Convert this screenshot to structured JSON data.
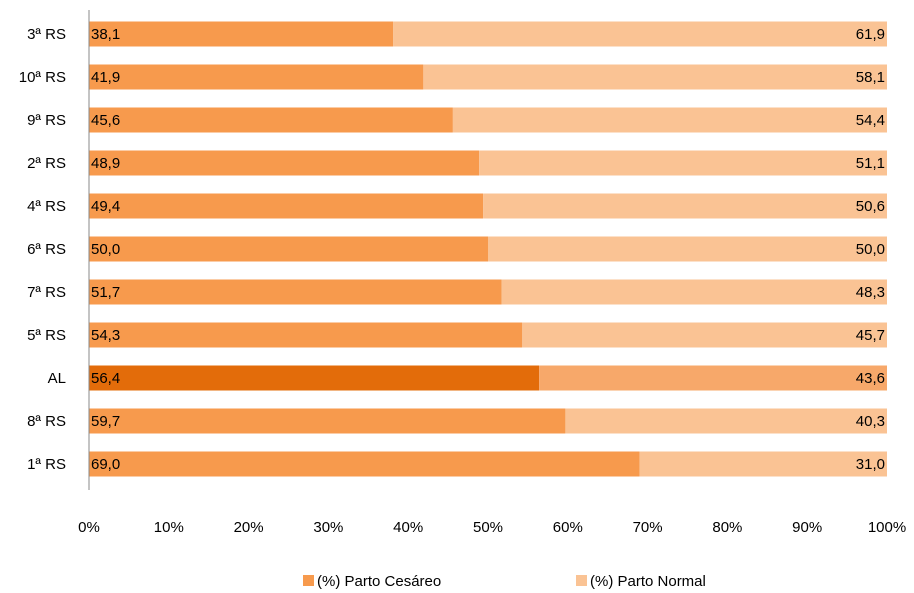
{
  "chart_data": {
    "type": "bar",
    "orientation": "horizontal",
    "stacked": "percent",
    "categories": [
      "3ª RS",
      "10ª RS",
      "9ª RS",
      "2ª RS",
      "4ª RS",
      "6ª RS",
      "7ª RS",
      "5ª RS",
      "AL",
      "8ª RS",
      "1ª RS"
    ],
    "series": [
      {
        "name": "(%) Parto Cesáreo",
        "values": [
          38.1,
          41.9,
          45.6,
          48.9,
          49.4,
          50.0,
          51.7,
          54.3,
          56.4,
          59.7,
          69.0
        ],
        "labels": [
          "38,1",
          "41,9",
          "45,6",
          "48,9",
          "49,4",
          "50,0",
          "51,7",
          "54,3",
          "56,4",
          "59,7",
          "69,0"
        ],
        "color": "#F79A4D"
      },
      {
        "name": "(%) Parto Normal",
        "values": [
          61.9,
          58.1,
          54.4,
          51.1,
          50.6,
          50.0,
          48.3,
          45.7,
          43.6,
          40.3,
          31.0
        ],
        "labels": [
          "61,9",
          "58,1",
          "54,4",
          "51,1",
          "50,6",
          "50,0",
          "48,3",
          "45,7",
          "43,6",
          "40,3",
          "31,0"
        ],
        "color": "#FAC394"
      }
    ],
    "highlight": {
      "category": "AL",
      "colors": [
        "#E36C0A",
        "#F7A86A"
      ]
    },
    "xlim": [
      0,
      100
    ],
    "x_ticks": [
      "0%",
      "10%",
      "20%",
      "30%",
      "40%",
      "50%",
      "60%",
      "70%",
      "80%",
      "90%",
      "100%"
    ],
    "grid": false,
    "legend_position": "bottom"
  }
}
